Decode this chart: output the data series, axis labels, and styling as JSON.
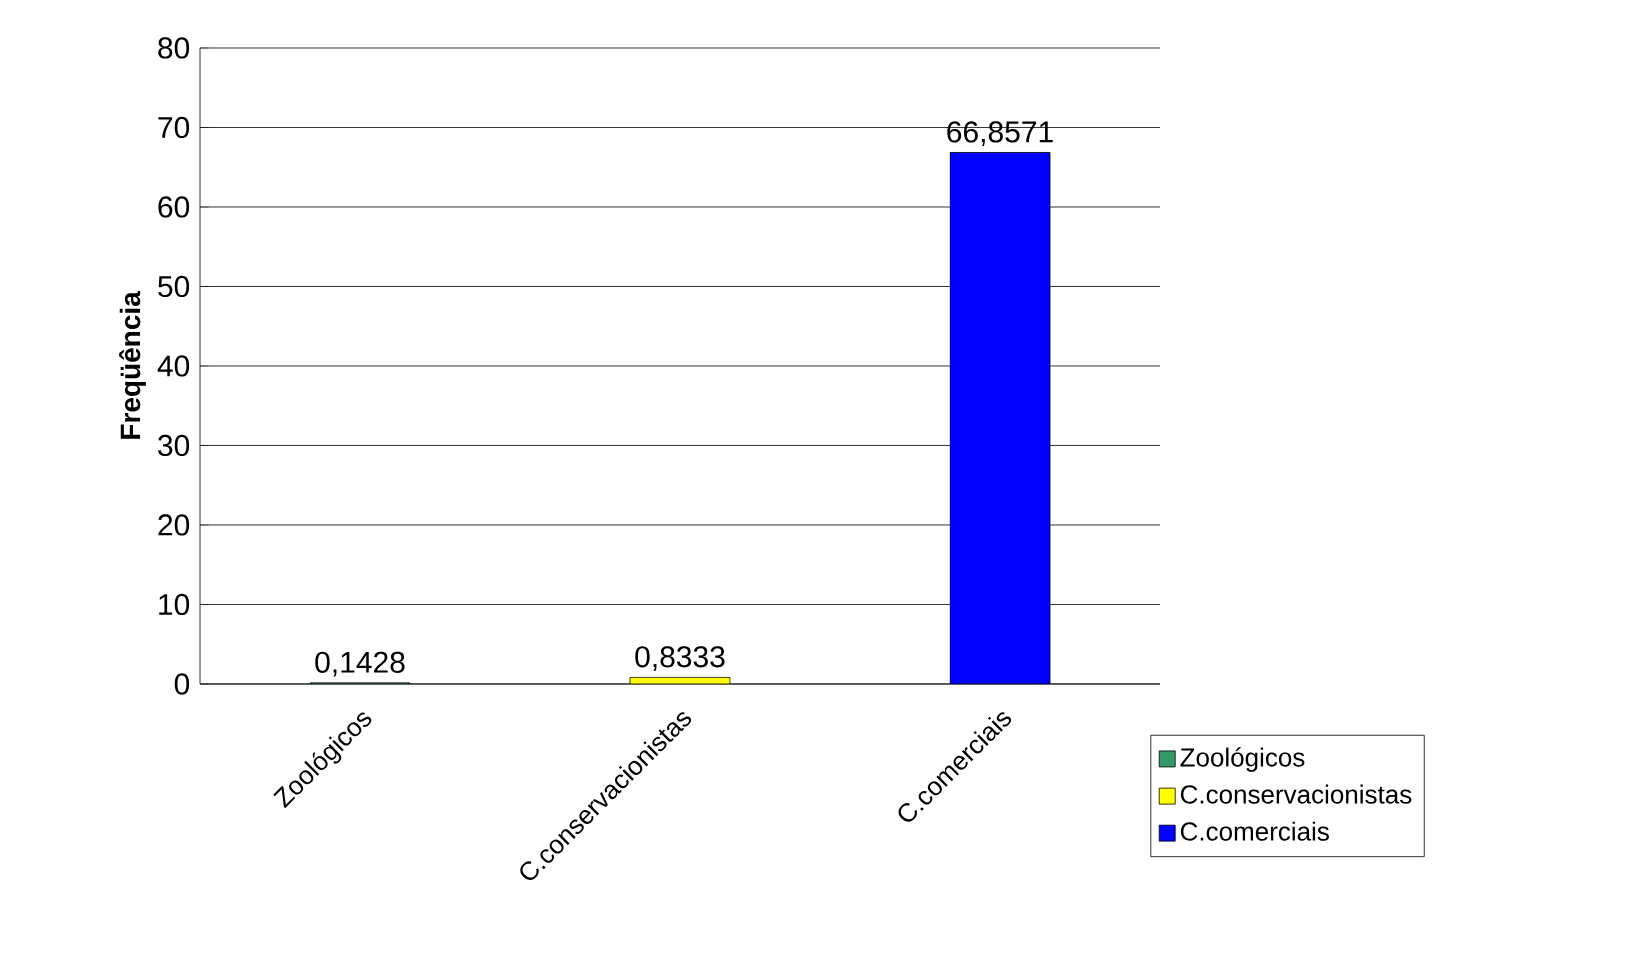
{
  "chart_data": {
    "type": "bar",
    "ylabel": "Freqüência",
    "categories": [
      "Zoológicos",
      "C.conservacionistas",
      "C.comerciais"
    ],
    "series": [
      {
        "name": "Zoológicos",
        "color": "#339966",
        "values": [
          0.1428,
          null,
          null
        ],
        "value_labels": [
          "0,1428",
          null,
          null
        ]
      },
      {
        "name": "C.conservacionistas",
        "color": "#ffff00",
        "values": [
          null,
          0.8333,
          null
        ],
        "value_labels": [
          null,
          "0,8333",
          null
        ]
      },
      {
        "name": "C.comerciais",
        "color": "#0000ff",
        "values": [
          null,
          null,
          66.8571
        ],
        "value_labels": [
          null,
          null,
          "66,8571"
        ]
      }
    ],
    "ylim": [
      0,
      80
    ],
    "yticks": [
      0,
      10,
      20,
      30,
      40,
      50,
      60,
      70,
      80
    ],
    "grid": "y",
    "legend": "bottom right"
  }
}
